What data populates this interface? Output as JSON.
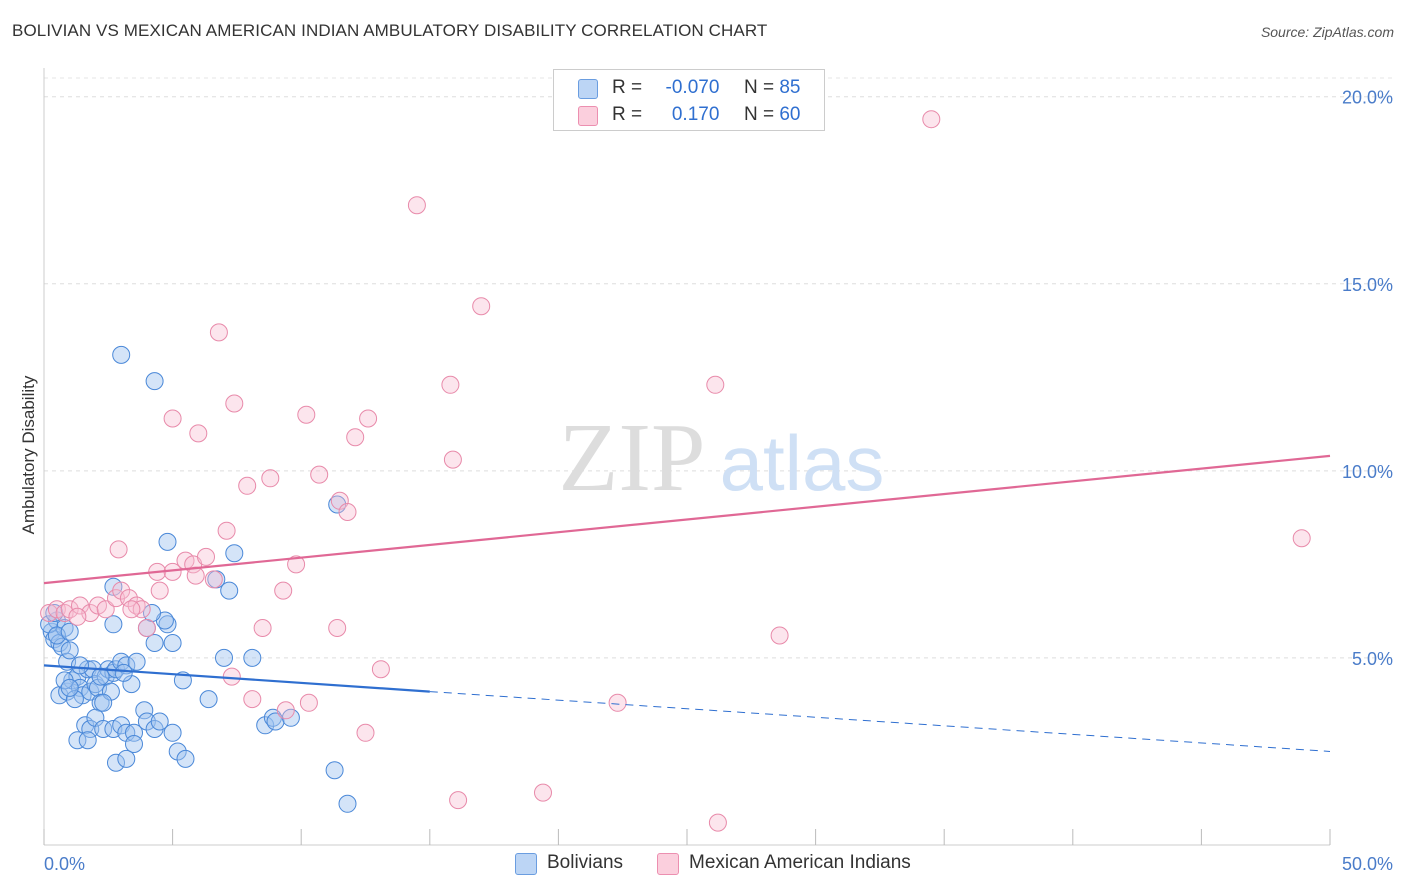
{
  "title": "BOLIVIAN VS MEXICAN AMERICAN INDIAN AMBULATORY DISABILITY CORRELATION CHART",
  "source": "Source: ZipAtlas.com",
  "watermark": {
    "zip": "ZIP",
    "atlas": "atlas"
  },
  "legend": {
    "r_label": "R =",
    "n_label": "N =",
    "rows": [
      {
        "r": "-0.070",
        "n": "85",
        "color": "#a9c8f0"
      },
      {
        "r": "0.170",
        "n": "60",
        "color": "#f5b8cc"
      }
    ]
  },
  "bottom_legend": [
    "Bolivians",
    "Mexican American Indians"
  ],
  "colors": {
    "blue": "#4a88d8",
    "pink": "#e878a0",
    "blue_line": "#2f6fd0",
    "pink_line": "#e06895",
    "tick_text": "#4a7cc9"
  },
  "chart_data": {
    "type": "scatter",
    "title": "BOLIVIAN VS MEXICAN AMERICAN INDIAN AMBULATORY DISABILITY CORRELATION CHART",
    "xlabel": "",
    "ylabel": "Ambulatory Disability",
    "xlim": [
      0,
      50
    ],
    "ylim": [
      0,
      20.5
    ],
    "x_tick_labels": [
      "0.0%",
      "50.0%"
    ],
    "y_ticks": [
      5,
      10,
      15,
      20
    ],
    "y_tick_labels": [
      "5.0%",
      "10.0%",
      "15.0%",
      "20.0%"
    ],
    "grid": "horizontal dashed",
    "legend_position": "top-center",
    "series": [
      {
        "name": "Bolivians",
        "r": -0.07,
        "n": 85,
        "trend": {
          "x0": 0,
          "y0": 4.8,
          "x_solid_end": 15,
          "y_solid_end": 4.1,
          "x1": 50,
          "y1": 2.5
        },
        "points": [
          [
            0.3,
            5.7
          ],
          [
            0.4,
            5.5
          ],
          [
            0.5,
            6.0
          ],
          [
            0.6,
            5.4
          ],
          [
            0.7,
            5.3
          ],
          [
            0.8,
            5.8
          ],
          [
            0.9,
            4.9
          ],
          [
            1.0,
            5.2
          ],
          [
            0.6,
            4.0
          ],
          [
            0.9,
            4.1
          ],
          [
            1.1,
            4.4
          ],
          [
            1.3,
            4.5
          ],
          [
            1.4,
            4.2
          ],
          [
            1.5,
            4.0
          ],
          [
            1.7,
            4.7
          ],
          [
            1.8,
            4.1
          ],
          [
            1.9,
            4.7
          ],
          [
            2.0,
            4.3
          ],
          [
            2.1,
            4.2
          ],
          [
            2.2,
            3.8
          ],
          [
            2.4,
            4.5
          ],
          [
            2.5,
            4.7
          ],
          [
            2.6,
            4.1
          ],
          [
            2.7,
            4.6
          ],
          [
            2.8,
            4.7
          ],
          [
            3.0,
            4.9
          ],
          [
            3.2,
            4.8
          ],
          [
            3.4,
            4.3
          ],
          [
            1.2,
            3.9
          ],
          [
            1.6,
            3.2
          ],
          [
            1.8,
            3.1
          ],
          [
            2.0,
            3.4
          ],
          [
            2.3,
            3.8
          ],
          [
            2.3,
            3.1
          ],
          [
            2.7,
            3.1
          ],
          [
            3.0,
            3.2
          ],
          [
            3.2,
            3.0
          ],
          [
            3.5,
            3.0
          ],
          [
            1.3,
            2.8
          ],
          [
            1.7,
            2.8
          ],
          [
            2.8,
            2.2
          ],
          [
            3.2,
            2.3
          ],
          [
            3.5,
            2.7
          ],
          [
            3.9,
            3.6
          ],
          [
            4.0,
            3.3
          ],
          [
            4.3,
            3.1
          ],
          [
            4.5,
            3.3
          ],
          [
            5.0,
            3.0
          ],
          [
            5.2,
            2.5
          ],
          [
            5.5,
            2.3
          ],
          [
            5.0,
            5.4
          ],
          [
            4.3,
            5.4
          ],
          [
            4.8,
            5.9
          ],
          [
            4.7,
            6.0
          ],
          [
            4.0,
            5.8
          ],
          [
            4.2,
            6.2
          ],
          [
            5.4,
            4.4
          ],
          [
            6.4,
            3.9
          ],
          [
            6.7,
            7.1
          ],
          [
            7.2,
            6.8
          ],
          [
            7.4,
            7.8
          ],
          [
            7.0,
            5.0
          ],
          [
            8.1,
            5.0
          ],
          [
            8.6,
            3.2
          ],
          [
            8.9,
            3.4
          ],
          [
            9.0,
            3.3
          ],
          [
            9.6,
            3.4
          ],
          [
            2.7,
            6.9
          ],
          [
            2.7,
            5.9
          ],
          [
            3.0,
            13.1
          ],
          [
            4.3,
            12.4
          ],
          [
            4.8,
            8.1
          ],
          [
            11.4,
            9.1
          ],
          [
            11.3,
            2.0
          ],
          [
            11.8,
            1.1
          ],
          [
            0.2,
            5.9
          ],
          [
            0.5,
            5.6
          ],
          [
            0.8,
            4.4
          ],
          [
            1.0,
            4.2
          ],
          [
            1.4,
            4.8
          ],
          [
            2.2,
            4.5
          ],
          [
            3.1,
            4.6
          ],
          [
            3.6,
            4.9
          ],
          [
            1.0,
            5.7
          ],
          [
            0.4,
            6.2
          ]
        ]
      },
      {
        "name": "Mexican American Indians",
        "r": 0.17,
        "n": 60,
        "trend": {
          "x0": 0,
          "y0": 7.0,
          "x1": 50,
          "y1": 10.4
        },
        "points": [
          [
            0.2,
            6.2
          ],
          [
            0.5,
            6.3
          ],
          [
            0.8,
            6.2
          ],
          [
            1.0,
            6.3
          ],
          [
            1.4,
            6.4
          ],
          [
            1.8,
            6.2
          ],
          [
            2.1,
            6.4
          ],
          [
            2.4,
            6.3
          ],
          [
            2.8,
            6.6
          ],
          [
            3.0,
            6.8
          ],
          [
            3.3,
            6.6
          ],
          [
            3.6,
            6.4
          ],
          [
            3.8,
            6.3
          ],
          [
            4.0,
            5.8
          ],
          [
            4.4,
            7.3
          ],
          [
            4.5,
            6.8
          ],
          [
            5.0,
            7.3
          ],
          [
            5.5,
            7.6
          ],
          [
            5.8,
            7.5
          ],
          [
            6.3,
            7.7
          ],
          [
            6.6,
            7.1
          ],
          [
            6.8,
            13.7
          ],
          [
            7.1,
            8.4
          ],
          [
            7.3,
            4.5
          ],
          [
            7.4,
            11.8
          ],
          [
            7.9,
            9.6
          ],
          [
            8.1,
            3.9
          ],
          [
            8.5,
            5.8
          ],
          [
            8.8,
            9.8
          ],
          [
            9.3,
            6.8
          ],
          [
            9.4,
            3.6
          ],
          [
            9.8,
            7.5
          ],
          [
            10.2,
            11.5
          ],
          [
            10.3,
            3.8
          ],
          [
            10.7,
            9.9
          ],
          [
            11.4,
            5.8
          ],
          [
            11.5,
            9.2
          ],
          [
            11.8,
            8.9
          ],
          [
            12.1,
            10.9
          ],
          [
            12.6,
            11.4
          ],
          [
            12.5,
            3.0
          ],
          [
            13.1,
            4.7
          ],
          [
            14.5,
            17.1
          ],
          [
            15.8,
            12.3
          ],
          [
            15.9,
            10.3
          ],
          [
            16.1,
            1.2
          ],
          [
            17.0,
            14.4
          ],
          [
            19.4,
            1.4
          ],
          [
            22.3,
            3.8
          ],
          [
            26.1,
            12.3
          ],
          [
            26.2,
            0.6
          ],
          [
            28.6,
            5.6
          ],
          [
            34.5,
            19.4
          ],
          [
            48.9,
            8.2
          ],
          [
            2.9,
            7.9
          ],
          [
            5.0,
            11.4
          ],
          [
            6.0,
            11.0
          ],
          [
            1.3,
            6.1
          ],
          [
            3.4,
            6.3
          ],
          [
            5.9,
            7.2
          ]
        ]
      }
    ]
  }
}
